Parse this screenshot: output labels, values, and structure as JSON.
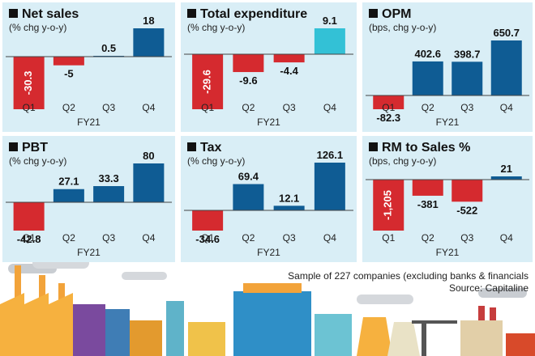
{
  "colors": {
    "panel_bg": "#d9eef6",
    "positive": "#0f5c94",
    "negative": "#d52a2f",
    "highlight": "#33c1d6",
    "axis": "#444444"
  },
  "chart_data": [
    {
      "type": "bar",
      "title": "Net sales",
      "subtitle": "(% chg y-o-y)",
      "xlabel": "FY21",
      "categories": [
        "Q1",
        "Q2",
        "Q3",
        "Q4"
      ],
      "values": [
        -30.3,
        -5,
        0.5,
        18
      ],
      "value_labels": [
        "-30.3",
        "-5",
        "0.5",
        "18"
      ],
      "value_label_rotated": [
        true,
        false,
        false,
        false
      ],
      "bar_colors": [
        "#d52a2f",
        "#d52a2f",
        "#0f5c94",
        "#0f5c94"
      ],
      "ylim": [
        -30.3,
        18
      ]
    },
    {
      "type": "bar",
      "title": "Total expenditure",
      "subtitle": "(% chg y-o-y)",
      "xlabel": "FY21",
      "categories": [
        "Q1",
        "Q2",
        "Q3",
        "Q4"
      ],
      "values": [
        -29.6,
        -9.6,
        -4.4,
        9.1
      ],
      "value_labels": [
        "-29.6",
        "-9.6",
        "-4.4",
        "9.1"
      ],
      "value_label_rotated": [
        true,
        false,
        false,
        false
      ],
      "bar_colors": [
        "#d52a2f",
        "#d52a2f",
        "#d52a2f",
        "#33c1d6"
      ],
      "ylim": [
        -29.6,
        9.1
      ]
    },
    {
      "type": "bar",
      "title": "OPM",
      "subtitle": "(bps, chg y-o-y)",
      "xlabel": "FY21",
      "categories": [
        "Q1",
        "Q2",
        "Q3",
        "Q4"
      ],
      "values": [
        -82.3,
        402.6,
        398.7,
        650.7
      ],
      "value_labels": [
        "-82.3",
        "402.6",
        "398.7",
        "650.7"
      ],
      "value_label_rotated": [
        false,
        false,
        false,
        false
      ],
      "bar_colors": [
        "#d52a2f",
        "#0f5c94",
        "#0f5c94",
        "#0f5c94"
      ],
      "ylim": [
        -82.3,
        650.7
      ]
    },
    {
      "type": "bar",
      "title": "PBT",
      "subtitle": "(% chg y-o-y)",
      "xlabel": "FY21",
      "categories": [
        "Q1",
        "Q2",
        "Q3",
        "Q4"
      ],
      "values": [
        -42.8,
        27.1,
        33.3,
        80
      ],
      "value_labels": [
        "-42.8",
        "27.1",
        "33.3",
        "80"
      ],
      "value_label_rotated": [
        false,
        false,
        false,
        false
      ],
      "bar_colors": [
        "#d52a2f",
        "#0f5c94",
        "#0f5c94",
        "#0f5c94"
      ],
      "ylim": [
        -42.8,
        80
      ]
    },
    {
      "type": "bar",
      "title": "Tax",
      "subtitle": "(% chg y-o-y)",
      "xlabel": "FY21",
      "categories": [
        "Q1",
        "Q2",
        "Q3",
        "Q4"
      ],
      "values": [
        -34.6,
        69.4,
        12.1,
        126.1
      ],
      "value_labels": [
        "-34.6",
        "69.4",
        "12.1",
        "126.1"
      ],
      "value_label_rotated": [
        false,
        false,
        false,
        false
      ],
      "bar_colors": [
        "#d52a2f",
        "#0f5c94",
        "#0f5c94",
        "#0f5c94"
      ],
      "ylim": [
        -34.6,
        126.1
      ]
    },
    {
      "type": "bar",
      "title": "RM to Sales %",
      "subtitle": "(bps, chg y-o-y)",
      "xlabel": "FY21",
      "categories": [
        "Q1",
        "Q2",
        "Q3",
        "Q4"
      ],
      "values": [
        -1205,
        -381,
        -522,
        21
      ],
      "value_labels": [
        "-1,205",
        "-381",
        "-522",
        "21"
      ],
      "value_label_rotated": [
        true,
        false,
        false,
        false
      ],
      "bar_colors": [
        "#d52a2f",
        "#d52a2f",
        "#d52a2f",
        "#0f5c94"
      ],
      "ylim": [
        -1205,
        21
      ]
    }
  ],
  "footnote": {
    "sample": "Sample of 227 companies (excluding banks & financials",
    "source": "Source: Capitaline"
  }
}
